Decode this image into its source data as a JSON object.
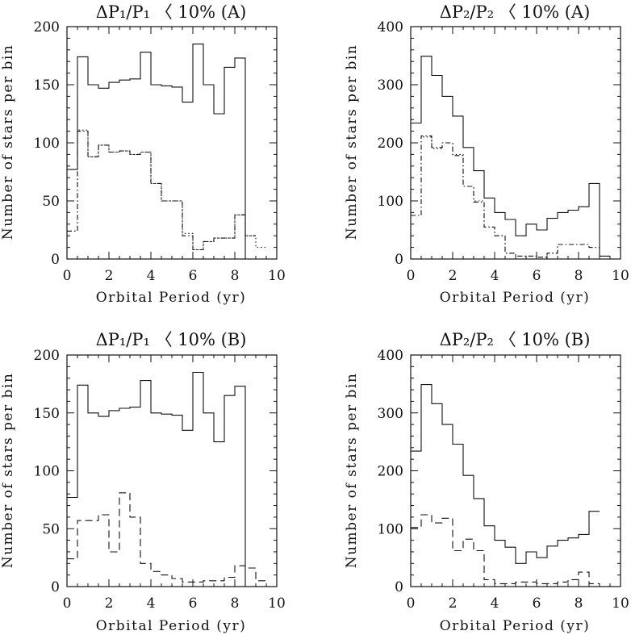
{
  "chart_data": [
    {
      "type": "histogram",
      "title": "ΔP₁/P₁ 〈 10% (A)",
      "xlabel": "Orbital Period (yr)",
      "ylabel": "Number of stars per bin",
      "xlim": [
        0,
        10
      ],
      "ylim": [
        0,
        200
      ],
      "xticks": [
        0,
        2,
        4,
        6,
        8,
        10
      ],
      "yticks": [
        0,
        50,
        100,
        150,
        200
      ],
      "bin_width": 0.5,
      "series": [
        {
          "style": "solid",
          "x": [
            0,
            0.5,
            1,
            1.5,
            2,
            2.5,
            3,
            3.5,
            4,
            4.5,
            5,
            5.5,
            6,
            6.5,
            7,
            7.5,
            8,
            8.5
          ],
          "values": [
            77,
            174,
            150,
            147,
            152,
            154,
            155,
            178,
            150,
            149,
            148,
            135,
            185,
            150,
            125,
            165,
            173,
            0
          ]
        },
        {
          "style": "dotted",
          "x": [
            0,
            0.5,
            1,
            1.5,
            2,
            2.5,
            3,
            3.5,
            4,
            4.5,
            5,
            5.5,
            6,
            6.5,
            7,
            7.5,
            8,
            8.5,
            9
          ],
          "values": [
            24,
            111,
            88,
            98,
            92,
            93,
            90,
            92,
            65,
            50,
            50,
            22,
            8,
            15,
            18,
            18,
            38,
            20,
            10
          ]
        },
        {
          "style": "dash-dot",
          "x": [
            0,
            0.5,
            1,
            1.5,
            2,
            2.5,
            3,
            3.5,
            4,
            4.5,
            5,
            5.5,
            6,
            6.5,
            7,
            7.5,
            8,
            8.5
          ],
          "values": [
            24,
            110,
            88,
            98,
            92,
            93,
            90,
            92,
            65,
            50,
            50,
            20,
            8,
            15,
            18,
            18,
            38,
            20
          ]
        }
      ]
    },
    {
      "type": "histogram",
      "title": "ΔP₂/P₂ 〈 10% (A)",
      "xlabel": "Orbital Period (yr)",
      "ylabel": "Number of stars per bin",
      "xlim": [
        0,
        10
      ],
      "ylim": [
        0,
        400
      ],
      "xticks": [
        0,
        2,
        4,
        6,
        8,
        10
      ],
      "yticks": [
        0,
        100,
        200,
        300,
        400
      ],
      "bin_width": 0.5,
      "series": [
        {
          "style": "solid",
          "x": [
            0,
            0.5,
            1,
            1.5,
            2,
            2.5,
            3,
            3.5,
            4,
            4.5,
            5,
            5.5,
            6,
            6.5,
            7,
            7.5,
            8,
            8.5,
            9
          ],
          "values": [
            234,
            349,
            316,
            280,
            246,
            192,
            152,
            105,
            80,
            68,
            40,
            60,
            50,
            70,
            80,
            84,
            90,
            130,
            5
          ]
        },
        {
          "style": "dotted",
          "x": [
            0,
            0.5,
            1,
            1.5,
            2,
            2.5,
            3,
            3.5,
            4,
            4.5,
            5,
            5.5,
            6,
            6.5,
            7,
            7.5,
            8,
            8.5
          ],
          "values": [
            75,
            210,
            190,
            200,
            180,
            125,
            100,
            55,
            40,
            10,
            5,
            5,
            3,
            10,
            25,
            25,
            25,
            20
          ]
        },
        {
          "style": "dash-dot",
          "x": [
            0,
            0.5,
            1,
            1.5,
            2,
            2.5,
            3,
            3.5,
            4,
            4.5,
            5,
            5.5,
            6,
            6.5,
            7,
            7.5,
            8,
            8.5
          ],
          "values": [
            75,
            212,
            192,
            200,
            178,
            125,
            98,
            55,
            40,
            10,
            5,
            5,
            3,
            10,
            25,
            25,
            25,
            20
          ]
        }
      ]
    },
    {
      "type": "histogram",
      "title": "ΔP₁/P₁ 〈 10% (B)",
      "xlabel": "Orbital Period (yr)",
      "ylabel": "Number of stars per bin",
      "xlim": [
        0,
        10
      ],
      "ylim": [
        0,
        200
      ],
      "xticks": [
        0,
        2,
        4,
        6,
        8,
        10
      ],
      "yticks": [
        0,
        50,
        100,
        150,
        200
      ],
      "bin_width": 0.5,
      "series": [
        {
          "style": "solid",
          "x": [
            0,
            0.5,
            1,
            1.5,
            2,
            2.5,
            3,
            3.5,
            4,
            4.5,
            5,
            5.5,
            6,
            6.5,
            7,
            7.5,
            8,
            8.5
          ],
          "values": [
            77,
            174,
            150,
            147,
            152,
            154,
            155,
            178,
            150,
            149,
            148,
            135,
            185,
            150,
            125,
            165,
            173,
            0
          ]
        },
        {
          "style": "dashed",
          "x": [
            0,
            0.5,
            1,
            1.5,
            2,
            2.5,
            3,
            3.5,
            4,
            4.5,
            5,
            5.5,
            6,
            6.5,
            7,
            7.5,
            8,
            8.5,
            9
          ],
          "values": [
            24,
            57,
            57,
            62,
            30,
            81,
            60,
            20,
            13,
            10,
            7,
            4,
            4,
            5,
            5,
            8,
            18,
            16,
            5
          ]
        }
      ]
    },
    {
      "type": "histogram",
      "title": "ΔP₂/P₂ 〈 10% (B)",
      "xlabel": "Orbital Period (yr)",
      "ylabel": "Number of stars per bin",
      "xlim": [
        0,
        10
      ],
      "ylim": [
        0,
        400
      ],
      "xticks": [
        0,
        2,
        4,
        6,
        8,
        10
      ],
      "yticks": [
        0,
        100,
        200,
        300,
        400
      ],
      "bin_width": 0.5,
      "series": [
        {
          "style": "solid",
          "x": [
            0,
            0.5,
            1,
            1.5,
            2,
            2.5,
            3,
            3.5,
            4,
            4.5,
            5,
            5.5,
            6,
            6.5,
            7,
            7.5,
            8,
            8.5
          ],
          "values": [
            234,
            349,
            316,
            280,
            246,
            192,
            152,
            105,
            80,
            68,
            40,
            60,
            50,
            70,
            80,
            84,
            90,
            130
          ]
        },
        {
          "style": "dashed",
          "x": [
            0,
            0.5,
            1,
            1.5,
            2,
            2.5,
            3,
            3.5,
            4,
            4.5,
            5,
            5.5,
            6,
            6.5,
            7,
            7.5,
            8,
            8.5
          ],
          "values": [
            102,
            124,
            110,
            118,
            62,
            82,
            62,
            12,
            5,
            5,
            8,
            8,
            5,
            5,
            8,
            12,
            25,
            5
          ]
        }
      ]
    }
  ]
}
